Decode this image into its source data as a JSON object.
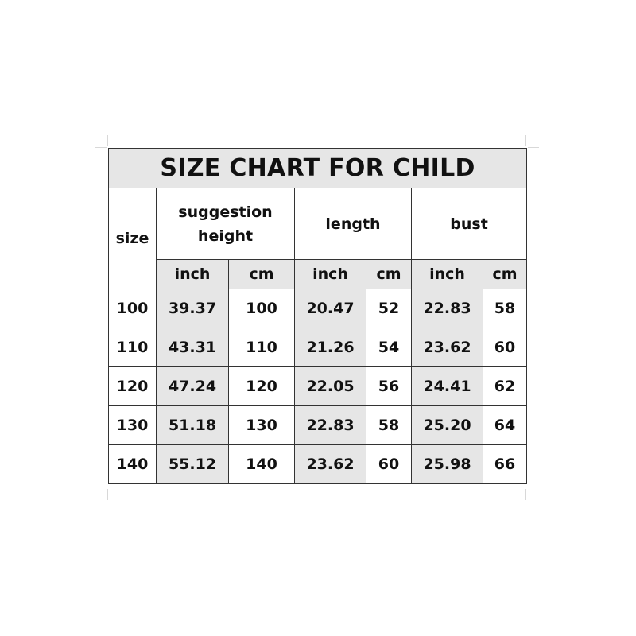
{
  "title": "SIZE CHART FOR CHILD",
  "headers": {
    "size": "size",
    "suggestion_height": "suggestion height",
    "length": "length",
    "bust": "bust"
  },
  "units": [
    "inch",
    "cm",
    "inch",
    "cm",
    "inch",
    "cm"
  ],
  "rows": [
    [
      "100",
      "39.37",
      "100",
      "20.47",
      "52",
      "22.83",
      "58"
    ],
    [
      "110",
      "43.31",
      "110",
      "21.26",
      "54",
      "23.62",
      "60"
    ],
    [
      "120",
      "47.24",
      "120",
      "22.05",
      "56",
      "24.41",
      "62"
    ],
    [
      "130",
      "51.18",
      "130",
      "22.83",
      "58",
      "25.20",
      "64"
    ],
    [
      "140",
      "55.12",
      "140",
      "23.62",
      "60",
      "25.98",
      "66"
    ]
  ],
  "colors": {
    "header_fill": "#e6e6e6",
    "border": "#333333"
  }
}
